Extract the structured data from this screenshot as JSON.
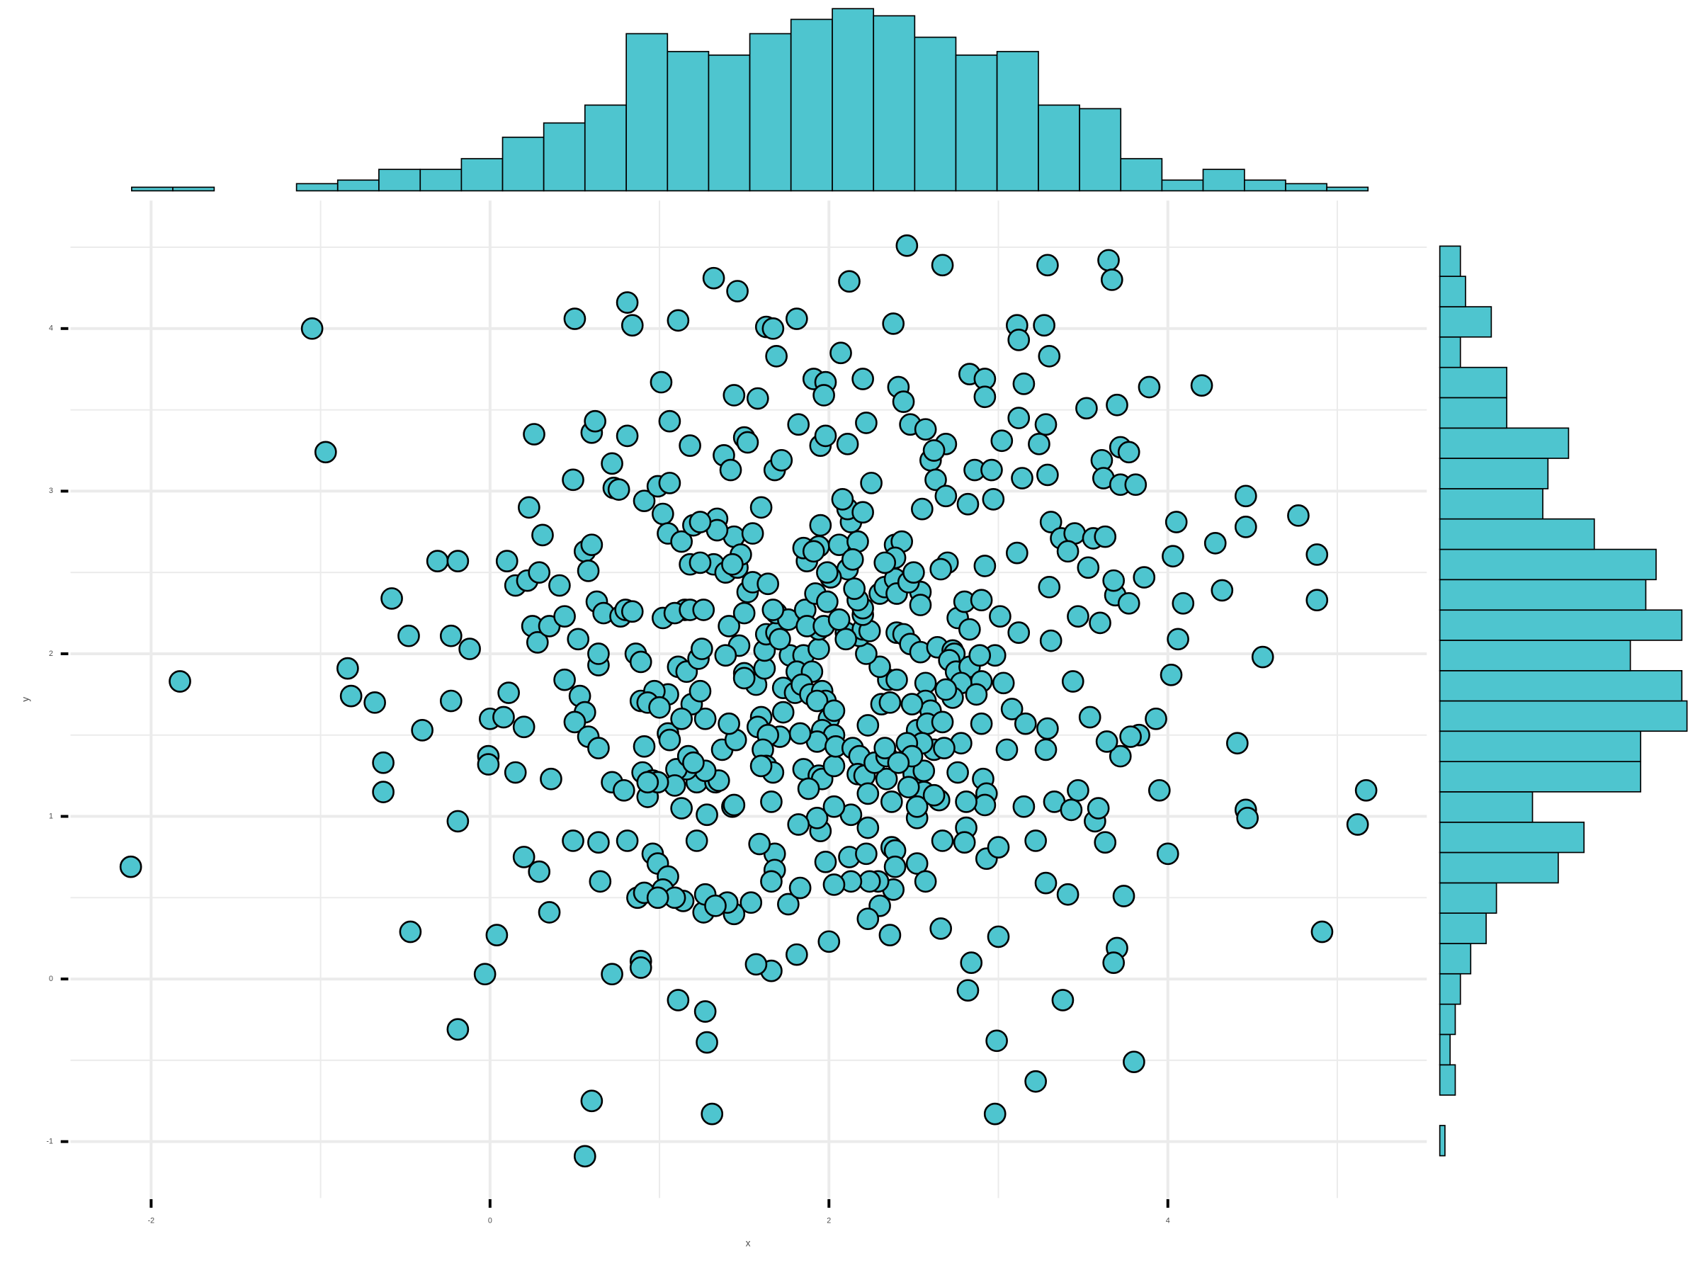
{
  "chart_data": {
    "type": "scatter",
    "xlabel": "x",
    "ylabel": "y",
    "color": "#4ec5cf",
    "grid": true,
    "xlim": [
      -2.476,
      5.528
    ],
    "ylim": [
      -1.247,
      4.787
    ],
    "xticks": [
      -2,
      0,
      2,
      4
    ],
    "yticks": [
      -1,
      0,
      1,
      2,
      3,
      4
    ],
    "x_minor_grid": [
      -1,
      1,
      3,
      5
    ],
    "y_minor_grid": [
      -0.5,
      0.5,
      1.5,
      2.5,
      3.5,
      4.5
    ],
    "x": [
      -2.12,
      -1.83,
      -1.05,
      -0.97,
      -0.58,
      -0.84,
      -0.82,
      -0.68,
      -0.63,
      -0.63,
      -0.48,
      -0.4,
      -0.31,
      -0.19,
      -0.23,
      -0.12,
      -0.23,
      -0.19,
      -0.47,
      -0.19,
      -0.03,
      0.04,
      -0.01,
      -0.01,
      0,
      0.08,
      0.2,
      0.11,
      0.15,
      0.1,
      0.15,
      0.22,
      0.23,
      0.26,
      0.31,
      0.29,
      0.25,
      0.28,
      0.35,
      0.41,
      0.44,
      0.36,
      0.2,
      0.29,
      0.35,
      0.49,
      0.5,
      0.49,
      0.56,
      0.58,
      0.6,
      0.62,
      0.63,
      0.6,
      0.67,
      0.52,
      0.64,
      0.64,
      0.44,
      0.53,
      0.56,
      0.5,
      0.58,
      0.64,
      0.72,
      0.79,
      0.64,
      0.65,
      0.6,
      0.56,
      0.72,
      0.81,
      0.84,
      0.81,
      0.72,
      0.73,
      0.76,
      0.77,
      0.8,
      0.84,
      0.81,
      0.86,
      0.89,
      0.91,
      0.89,
      0.91,
      0.9,
      0.96,
      0.93,
      0.87,
      0.89,
      0.89,
      0.91,
      0.96,
      0.99,
      1.01,
      0.99,
      1.02,
      1.02,
      1.06,
      1.06,
      1.05,
      1.05,
      1.02,
      1.11,
      1.13,
      1.11,
      1.14,
      1.18,
      1.18,
      1.2,
      1.15,
      1.32,
      1.27,
      1.28,
      1.31,
      1.26,
      1.27,
      1.22,
      1.28,
      1.34,
      1.38,
      1.42,
      1.46,
      1.44,
      1.5,
      1.52,
      1.44,
      1.55,
      1.58,
      1.63,
      1.67,
      1.69,
      1.81,
      1.68,
      1.72,
      1.82,
      1.91,
      1.98,
      1.97,
      1.95,
      1.98,
      2.07,
      2.12,
      2.11,
      2.2,
      2.22,
      2.25,
      2.46,
      2.67,
      2.38,
      2.41,
      2.44,
      2.48,
      2.57,
      2.69,
      2.6,
      2.62,
      2.63,
      2.55,
      2.69,
      2.83,
      2.92,
      2.92,
      2.86,
      2.96,
      2.82,
      2.97,
      3.02,
      3.11,
      3.12,
      3.15,
      3.12,
      3.14,
      3.29,
      3.27,
      3.3,
      3.28,
      3.24,
      3.29,
      3.65,
      3.67,
      3.89,
      4.2,
      3.52,
      3.7,
      3.72,
      3.77,
      3.61,
      3.62,
      3.72,
      3.81,
      3.31,
      3.37,
      3.45,
      3.56,
      3.63,
      4.05,
      4.28,
      4.46,
      4.46,
      4.77,
      4.88,
      4.88,
      4.03,
      4.32,
      4.09,
      4.06,
      4.56,
      4.02,
      3.93,
      3.83,
      4.41,
      3.95,
      4.46,
      4.47,
      5.17,
      5.12,
      4.91,
      4.0,
      3.74,
      3.7,
      3.68,
      3.8,
      3.38,
      3.22,
      2.98,
      2.99,
      3.0,
      2.84,
      2.82,
      2.66,
      3.28,
      3.41,
      3.22,
      3.63,
      3.57,
      3.47,
      3.78,
      3.72,
      3.64,
      3.54,
      3.44,
      3.6,
      3.69,
      3.77,
      3.86,
      3.68,
      3.53,
      3.41,
      3.11,
      3.3,
      3.47,
      3.31,
      3.12,
      3.01,
      2.92,
      2.7,
      2.66,
      2.76,
      2.8,
      2.9,
      2.83,
      2.98,
      3.03,
      3.08,
      3.16,
      3.29,
      3.28,
      3.05,
      2.9,
      2.78,
      2.76,
      2.91,
      2.93,
      2.92,
      2.81,
      2.65,
      2.81,
      2.8,
      2.67,
      2.93,
      3.0,
      3.15,
      3.33,
      3.43,
      3.59,
      2.5,
      2.56,
      2.52,
      2.56,
      2.34,
      2.37,
      2.39,
      2.39,
      2.38,
      2.52,
      2.57,
      2.29,
      2.24,
      2.13,
      2.03,
      1.98,
      2.12,
      2.22,
      2.23,
      2.3,
      2.23,
      2.36,
      2.0,
      1.81,
      1.66,
      1.57,
      1.76,
      1.83,
      1.95,
      1.93,
      1.82,
      1.68,
      1.68,
      1.66,
      1.59,
      1.54,
      1.44,
      1.4,
      1.33,
      1.09,
      0.99,
      1.22,
      1.33,
      1.35,
      1.27,
      1.16,
      1.1,
      1.09,
      0.99,
      0.93,
      1.17,
      1.2,
      1.13,
      1.43,
      1.44,
      1.37,
      1.45,
      1.41,
      1.27,
      1.19,
      1.24,
      1.05,
      0.97,
      0.93,
      1.0,
      1.05,
      1.06,
      1.13,
      1.11,
      1.16,
      1.23,
      1.25,
      1.09,
      1.18,
      1.26,
      1.32,
      1.39,
      1.46,
      1.52,
      1.55,
      1.64,
      1.41,
      1.5,
      1.47,
      1.39,
      1.5,
      1.57,
      1.62,
      1.62,
      1.63,
      1.69,
      1.69,
      1.76,
      1.86,
      1.77,
      1.85,
      1.81,
      1.9,
      1.71,
      1.73,
      1.8,
      1.84,
      1.89,
      1.96,
      1.98,
      1.93,
      2.0,
      2.03,
      1.96,
      2.03,
      1.93,
      1.83,
      1.73,
      1.71,
      1.6,
      1.58,
      1.64,
      1.61,
      1.63,
      1.67,
      1.6,
      1.66,
      1.5,
      1.85,
      1.94,
      1.96,
      2.03,
      2.04,
      2.14,
      2.18,
      2.17,
      2.21,
      2.27,
      2.34,
      2.33,
      2.23,
      2.31,
      2.36,
      2.35,
      2.4,
      2.3,
      2.22,
      2.18,
      2.1,
      2.2,
      2.24,
      2.2,
      2.2,
      2.17,
      2.3,
      2.33,
      2.39,
      2.4,
      2.54,
      2.54,
      2.47,
      2.4,
      2.44,
      2.48,
      2.54,
      2.64,
      2.73,
      2.74,
      2.71,
      2.75,
      2.83,
      2.89,
      2.9,
      2.78,
      2.87,
      2.73,
      2.69,
      2.57,
      2.57,
      2.6,
      2.49,
      2.52,
      2.58,
      2.67,
      2.62,
      2.68,
      2.55,
      2.46,
      2.49,
      2.41,
      2.52,
      2.37,
      2.47,
      2.62,
      2.23,
      2.13,
      2.03,
      1.88,
      1.94,
      1.94,
      1.87,
      1.92,
      1.99,
      1.97,
      2.06,
      2.1,
      2.15,
      2.11,
      2.01,
      1.99,
      1.87,
      1.85,
      1.94,
      2.06,
      2.17,
      2.13,
      2.11,
      2.2,
      2.08,
      1.95,
      2.14,
      2.39,
      2.43,
      2.39,
      2.5,
      2.33,
      1.91,
      1.67,
      1.6,
      1.34,
      1.24,
      1.48,
      1.24,
      1.43
    ],
    "y": [
      0.69,
      1.83,
      4.0,
      3.24,
      2.34,
      1.91,
      1.74,
      1.7,
      1.33,
      1.15,
      2.11,
      1.53,
      2.57,
      2.57,
      2.11,
      2.03,
      1.71,
      0.97,
      0.29,
      -0.31,
      0.03,
      0.27,
      1.37,
      1.32,
      1.6,
      1.61,
      1.55,
      1.76,
      1.27,
      2.57,
      2.42,
      2.45,
      2.9,
      3.35,
      2.73,
      2.5,
      2.17,
      2.07,
      2.17,
      2.42,
      2.23,
      1.23,
      0.75,
      0.66,
      0.41,
      0.85,
      4.06,
      3.07,
      2.63,
      2.51,
      3.36,
      3.43,
      2.32,
      2.67,
      2.25,
      2.09,
      1.93,
      2.0,
      1.84,
      1.74,
      1.64,
      1.58,
      1.49,
      1.42,
      1.21,
      1.16,
      0.84,
      0.6,
      -0.75,
      -1.09,
      0.03,
      4.16,
      4.02,
      3.34,
      3.17,
      3.02,
      3.01,
      2.23,
      2.27,
      2.26,
      0.85,
      2.0,
      1.95,
      2.94,
      1.71,
      1.43,
      1.27,
      1.22,
      1.12,
      0.5,
      0.11,
      0.07,
      0.53,
      0.77,
      0.71,
      3.67,
      3.03,
      2.86,
      2.22,
      3.43,
      3.05,
      2.74,
      0.63,
      0.55,
      4.05,
      2.69,
      -0.13,
      0.48,
      3.28,
      2.55,
      2.79,
      2.27,
      4.31,
      -0.2,
      -0.39,
      -0.83,
      0.41,
      0.52,
      0.85,
      1.01,
      2.83,
      3.22,
      3.13,
      4.23,
      3.59,
      3.33,
      3.3,
      2.72,
      2.74,
      3.57,
      4.01,
      4.0,
      3.83,
      4.06,
      3.13,
      3.19,
      3.41,
      3.69,
      3.67,
      3.59,
      3.28,
      3.34,
      3.85,
      4.29,
      3.29,
      3.69,
      3.42,
      3.05,
      4.51,
      4.39,
      4.03,
      3.64,
      3.55,
      3.41,
      3.38,
      3.29,
      3.19,
      3.25,
      3.07,
      2.89,
      2.97,
      3.72,
      3.69,
      3.58,
      3.13,
      3.13,
      2.92,
      2.95,
      3.31,
      4.02,
      3.93,
      3.66,
      3.45,
      3.08,
      4.39,
      4.02,
      3.83,
      3.41,
      3.29,
      3.1,
      4.42,
      4.3,
      3.64,
      3.65,
      3.51,
      3.53,
      3.27,
      3.24,
      3.19,
      3.08,
      3.04,
      3.04,
      2.81,
      2.71,
      2.74,
      2.71,
      2.72,
      2.81,
      2.68,
      2.97,
      2.78,
      2.85,
      2.61,
      2.33,
      2.6,
      2.39,
      2.31,
      2.09,
      1.98,
      1.87,
      1.6,
      1.5,
      1.45,
      1.16,
      1.04,
      0.99,
      1.16,
      0.95,
      0.29,
      0.77,
      0.51,
      0.19,
      0.1,
      -0.51,
      -0.13,
      -0.63,
      -0.83,
      -0.38,
      0.26,
      0.1,
      -0.07,
      0.31,
      0.59,
      0.52,
      0.85,
      0.84,
      0.97,
      1.16,
      1.49,
      1.37,
      1.46,
      1.61,
      1.83,
      2.19,
      2.36,
      2.31,
      2.47,
      2.45,
      2.53,
      2.63,
      2.62,
      2.41,
      2.23,
      2.08,
      2.13,
      2.23,
      2.54,
      2.56,
      2.52,
      2.22,
      2.32,
      2.33,
      2.15,
      1.99,
      1.82,
      1.66,
      1.57,
      1.54,
      1.41,
      1.41,
      1.57,
      1.45,
      1.27,
      1.23,
      1.14,
      1.07,
      1.09,
      1.1,
      0.93,
      0.84,
      0.85,
      0.74,
      0.81,
      1.06,
      1.09,
      1.04,
      1.05,
      1.26,
      1.28,
      0.99,
      1.15,
      1.23,
      0.81,
      0.79,
      0.69,
      0.55,
      0.71,
      0.6,
      0.6,
      0.6,
      0.6,
      0.58,
      0.72,
      0.75,
      0.77,
      0.93,
      0.45,
      0.37,
      0.27,
      0.23,
      0.15,
      0.05,
      0.09,
      0.46,
      0.56,
      0.91,
      0.99,
      0.95,
      0.77,
      0.67,
      0.6,
      0.83,
      0.47,
      0.4,
      0.47,
      0.45,
      0.5,
      0.5,
      1.21,
      1.21,
      1.22,
      1.28,
      1.29,
      1.29,
      1.19,
      1.21,
      1.21,
      1.37,
      1.33,
      1.05,
      1.06,
      1.07,
      1.41,
      1.47,
      1.57,
      1.6,
      1.69,
      1.77,
      1.75,
      1.77,
      1.7,
      1.67,
      1.51,
      1.47,
      1.6,
      1.92,
      1.89,
      1.97,
      2.03,
      2.25,
      2.27,
      2.27,
      2.55,
      2.5,
      2.53,
      2.38,
      2.44,
      2.43,
      2.17,
      2.25,
      2.05,
      1.99,
      1.88,
      1.81,
      1.91,
      2.02,
      2.12,
      2.13,
      2.25,
      2.21,
      2.27,
      1.99,
      1.99,
      1.89,
      1.89,
      2.09,
      1.79,
      1.76,
      1.81,
      1.75,
      1.77,
      1.71,
      1.71,
      1.6,
      1.65,
      1.53,
      1.5,
      1.46,
      1.51,
      1.64,
      1.49,
      1.61,
      1.55,
      1.5,
      1.41,
      1.31,
      1.27,
      1.31,
      1.09,
      1.85,
      1.29,
      1.25,
      1.23,
      1.31,
      1.43,
      1.42,
      1.37,
      1.26,
      1.25,
      1.33,
      1.37,
      1.42,
      1.56,
      1.69,
      1.7,
      1.84,
      1.84,
      1.92,
      2.0,
      2.11,
      2.13,
      2.15,
      2.14,
      2.24,
      2.28,
      2.33,
      2.37,
      2.41,
      2.46,
      2.37,
      2.38,
      2.3,
      2.44,
      2.13,
      2.12,
      2.06,
      2.01,
      2.04,
      2.02,
      2.0,
      1.96,
      1.89,
      1.92,
      1.99,
      1.83,
      1.82,
      1.75,
      1.73,
      1.78,
      1.82,
      1.71,
      1.65,
      1.69,
      1.53,
      1.57,
      1.58,
      1.41,
      1.42,
      1.45,
      1.45,
      1.37,
      1.33,
      1.06,
      1.09,
      1.18,
      1.13,
      1.14,
      1.01,
      1.06,
      1.17,
      2.03,
      2.15,
      2.17,
      2.37,
      2.32,
      2.17,
      2.21,
      2.09,
      2.4,
      2.52,
      2.47,
      2.5,
      2.57,
      2.65,
      2.66,
      2.67,
      2.69,
      2.81,
      2.89,
      2.87,
      2.95,
      2.79,
      2.58,
      2.67,
      2.69,
      2.59,
      2.5,
      2.56,
      2.63,
      2.27,
      2.9,
      2.76,
      2.81,
      2.61,
      2.56,
      2.55
    ],
    "x_histogram": {
      "bins": [
        -2.115,
        -1.872,
        -1.628,
        -1.385,
        -1.142,
        -0.899,
        -0.656,
        -0.412,
        -0.169,
        0.074,
        0.317,
        0.56,
        0.804,
        1.047,
        1.29,
        1.533,
        1.776,
        2.02,
        2.263,
        2.506,
        2.749,
        2.992,
        3.236,
        3.479,
        3.722,
        3.965,
        4.208,
        4.452,
        4.695,
        4.938,
        5.181
      ],
      "counts": [
        1,
        1,
        0,
        0,
        2,
        3,
        6,
        6,
        9,
        15,
        19,
        24,
        44,
        39,
        38,
        44,
        48,
        51,
        49,
        43,
        38,
        39,
        24,
        23,
        9,
        3,
        6,
        3,
        2,
        1
      ]
    },
    "y_histogram": {
      "bins": [
        -1.087,
        -0.901,
        -0.714,
        -0.528,
        -0.341,
        -0.155,
        0.032,
        0.218,
        0.405,
        0.591,
        0.778,
        0.964,
        1.151,
        1.337,
        1.524,
        1.71,
        1.896,
        2.083,
        2.269,
        2.456,
        2.642,
        2.829,
        3.015,
        3.202,
        3.388,
        3.575,
        3.761,
        3.948,
        4.134,
        4.321,
        4.507
      ],
      "counts": [
        1,
        0,
        3,
        2,
        3,
        4,
        6,
        9,
        11,
        23,
        28,
        18,
        39,
        39,
        48,
        47,
        37,
        47,
        40,
        42,
        30,
        20,
        21,
        25,
        13,
        13,
        4,
        10,
        5,
        4
      ]
    }
  }
}
